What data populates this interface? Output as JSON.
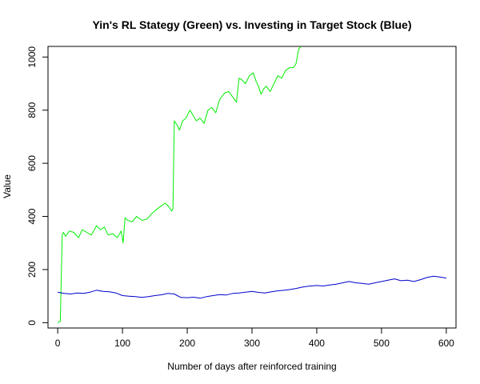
{
  "chart_data": {
    "type": "line",
    "title": "Yin's RL Stategy (Green) vs. Investing in Target Stock (Blue)",
    "xlabel": "Number of days after reinforced training",
    "ylabel": "Value",
    "xlim": [
      -15,
      615
    ],
    "ylim": [
      -20,
      1040
    ],
    "x_ticks": [
      0,
      100,
      200,
      300,
      400,
      500,
      600
    ],
    "y_ticks": [
      0,
      200,
      400,
      600,
      800,
      1000
    ],
    "grid": false,
    "series": [
      {
        "color": "#00ee00",
        "x": [
          0,
          4,
          5,
          7,
          9,
          12,
          18,
          25,
          32,
          38,
          45,
          52,
          60,
          66,
          72,
          78,
          85,
          92,
          98,
          101,
          104,
          108,
          115,
          122,
          130,
          138,
          145,
          152,
          160,
          166,
          172,
          176,
          178,
          180,
          184,
          188,
          193,
          198,
          204,
          208,
          214,
          220,
          226,
          232,
          238,
          244,
          250,
          258,
          264,
          270,
          276,
          280,
          284,
          290,
          296,
          302,
          306,
          310,
          314,
          318,
          322,
          328,
          334,
          340,
          346,
          352,
          358,
          364,
          368,
          372,
          376
        ],
        "y": [
          0,
          5,
          120,
          330,
          340,
          325,
          345,
          340,
          320,
          350,
          340,
          330,
          365,
          350,
          360,
          330,
          335,
          320,
          345,
          300,
          395,
          385,
          380,
          400,
          385,
          390,
          410,
          425,
          440,
          450,
          435,
          420,
          430,
          760,
          745,
          725,
          760,
          770,
          800,
          785,
          760,
          770,
          750,
          800,
          810,
          790,
          840,
          865,
          870,
          850,
          830,
          920,
          915,
          900,
          930,
          940,
          910,
          890,
          860,
          880,
          890,
          870,
          900,
          930,
          920,
          950,
          960,
          960,
          975,
          1030,
          1040
        ]
      },
      {
        "color": "#0000cc",
        "x": [
          0,
          10,
          20,
          30,
          40,
          50,
          60,
          70,
          80,
          90,
          100,
          110,
          120,
          130,
          140,
          150,
          160,
          170,
          180,
          190,
          200,
          210,
          220,
          230,
          240,
          250,
          260,
          270,
          280,
          290,
          300,
          310,
          320,
          330,
          340,
          350,
          360,
          370,
          380,
          390,
          400,
          410,
          420,
          430,
          440,
          450,
          460,
          470,
          480,
          490,
          500,
          510,
          520,
          530,
          540,
          550,
          560,
          570,
          580,
          590,
          600
        ],
        "y": [
          115,
          110,
          108,
          112,
          110,
          115,
          122,
          118,
          116,
          112,
          102,
          100,
          98,
          95,
          98,
          102,
          105,
          110,
          108,
          95,
          94,
          96,
          92,
          98,
          102,
          106,
          104,
          110,
          112,
          115,
          118,
          114,
          112,
          116,
          120,
          122,
          125,
          130,
          135,
          138,
          140,
          138,
          142,
          145,
          150,
          155,
          150,
          148,
          145,
          150,
          155,
          160,
          165,
          158,
          160,
          155,
          162,
          170,
          175,
          172,
          168
        ]
      }
    ]
  }
}
